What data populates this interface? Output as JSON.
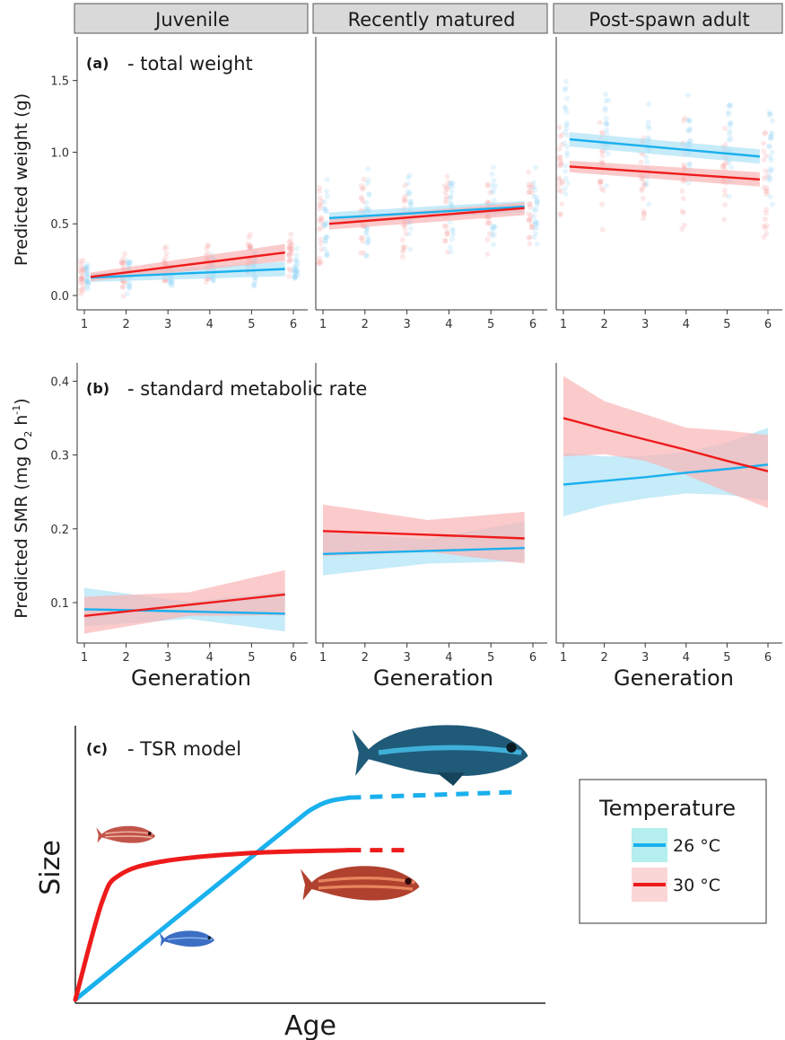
{
  "colors": {
    "cold": "#1ab0ee",
    "cold_fill": "#aee3f7",
    "warm": "#ee1b1b",
    "warm_fill": "#f9b5b5",
    "cold_point": "#8fd3f4",
    "warm_point": "#f59a9a",
    "strip_fill": "#d9d9d9",
    "axis": "#333333"
  },
  "facets": [
    "Juvenile",
    "Recently matured",
    "Post-spawn adult"
  ],
  "panel_a": {
    "tag": "(a)",
    "title": "- total weight",
    "ylabel": "Predicted weight (g)"
  },
  "panel_b": {
    "tag": "(b)",
    "title": "- standard metabolic rate",
    "ylabel_main": "Predicted SMR (mg O",
    "ylabel_sub1": "2",
    "ylabel_mid": " h",
    "ylabel_sup": "-1",
    "ylabel_end": ")",
    "xlabel": "Generation"
  },
  "panel_c": {
    "tag": "(c)",
    "title": "- TSR model",
    "xlabel": "Age",
    "ylabel": "Size"
  },
  "legend": {
    "title": "Temperature",
    "entries": [
      {
        "label": "26 °C",
        "color_key": "cold"
      },
      {
        "label": "30 °C",
        "color_key": "warm"
      }
    ]
  },
  "icons": [
    "fish-icon"
  ],
  "chart_data": [
    {
      "type": "line",
      "panel": "a",
      "x_ticks": [
        1,
        2,
        3,
        4,
        5,
        6
      ],
      "xlim": [
        0.9,
        6.2
      ],
      "ylim": [
        -0.05,
        1.78
      ],
      "y_ticks": [
        0.0,
        0.5,
        1.0,
        1.5
      ],
      "y_tick_labels": [
        "0.0",
        "0.5",
        "1.0",
        "1.5"
      ],
      "facets": [
        {
          "name": "Juvenile",
          "series": [
            {
              "name": "26 °C",
              "x": [
                1.15,
                5.8
              ],
              "fit": [
                0.125,
                0.185
              ],
              "lower": [
                0.095,
                0.135
              ],
              "upper": [
                0.155,
                0.235
              ],
              "point_center": [
                0.12,
                0.14,
                0.15,
                0.16,
                0.17,
                0.19
              ],
              "point_spread": [
                0.12,
                0.16,
                0.15,
                0.14,
                0.15,
                0.16
              ]
            },
            {
              "name": "30 °C",
              "x": [
                1.15,
                5.8
              ],
              "fit": [
                0.13,
                0.3
              ],
              "lower": [
                0.1,
                0.24
              ],
              "upper": [
                0.16,
                0.36
              ],
              "point_center": [
                0.13,
                0.16,
                0.19,
                0.22,
                0.26,
                0.3
              ],
              "point_spread": [
                0.14,
                0.18,
                0.16,
                0.17,
                0.22,
                0.2
              ]
            }
          ]
        },
        {
          "name": "Recently matured",
          "series": [
            {
              "name": "26 °C",
              "x": [
                1.15,
                5.8
              ],
              "fit": [
                0.54,
                0.62
              ],
              "lower": [
                0.5,
                0.58
              ],
              "upper": [
                0.58,
                0.66
              ],
              "point_center": [
                0.54,
                0.56,
                0.57,
                0.59,
                0.6,
                0.62
              ],
              "point_spread": [
                0.35,
                0.35,
                0.35,
                0.35,
                0.35,
                0.35
              ]
            },
            {
              "name": "30 °C",
              "x": [
                1.15,
                5.8
              ],
              "fit": [
                0.5,
                0.61
              ],
              "lower": [
                0.46,
                0.56
              ],
              "upper": [
                0.54,
                0.65
              ],
              "point_center": [
                0.51,
                0.53,
                0.55,
                0.57,
                0.59,
                0.61
              ],
              "point_spread": [
                0.35,
                0.35,
                0.35,
                0.35,
                0.35,
                0.35
              ]
            }
          ]
        },
        {
          "name": "Post-spawn adult",
          "series": [
            {
              "name": "26 °C",
              "x": [
                1.15,
                5.8
              ],
              "fit": [
                1.09,
                0.97
              ],
              "lower": [
                1.04,
                0.92
              ],
              "upper": [
                1.14,
                1.02
              ],
              "point_center": [
                1.09,
                1.07,
                1.04,
                1.02,
                1.0,
                0.98
              ],
              "point_spread": [
                0.45,
                0.45,
                0.45,
                0.45,
                0.45,
                0.45
              ]
            },
            {
              "name": "30 °C",
              "x": [
                1.15,
                5.8
              ],
              "fit": [
                0.9,
                0.81
              ],
              "lower": [
                0.86,
                0.76
              ],
              "upper": [
                0.94,
                0.86
              ],
              "point_center": [
                0.9,
                0.88,
                0.86,
                0.85,
                0.83,
                0.81
              ],
              "point_spread": [
                0.45,
                0.45,
                0.45,
                0.45,
                0.45,
                0.45
              ]
            }
          ]
        }
      ]
    },
    {
      "type": "line",
      "panel": "b",
      "x_ticks": [
        1,
        2,
        3,
        4,
        5,
        6
      ],
      "xlim": [
        0.9,
        6.2
      ],
      "ylim": [
        0.055,
        0.42
      ],
      "y_ticks": [
        0.1,
        0.2,
        0.3,
        0.4
      ],
      "y_tick_labels": [
        "0.1",
        "0.2",
        "0.3",
        "0.4"
      ],
      "facets": [
        {
          "name": "Juvenile",
          "series": [
            {
              "name": "26 °C",
              "x": [
                1,
                3.5,
                5.8
              ],
              "fit": [
                0.091,
                0.088,
                0.085
              ],
              "lower": [
                0.068,
                0.078,
                0.061
              ],
              "upper": [
                0.12,
                0.101,
                0.115
              ]
            },
            {
              "name": "30 °C",
              "x": [
                1,
                3.5,
                5.8
              ],
              "fit": [
                0.082,
                0.097,
                0.111
              ],
              "lower": [
                0.058,
                0.082,
                0.083
              ],
              "upper": [
                0.108,
                0.114,
                0.144
              ]
            }
          ]
        },
        {
          "name": "Recently matured",
          "series": [
            {
              "name": "26 °C",
              "x": [
                1,
                3.5,
                5.8
              ],
              "fit": [
                0.166,
                0.17,
                0.174
              ],
              "lower": [
                0.137,
                0.153,
                0.156
              ],
              "upper": [
                0.196,
                0.186,
                0.21
              ]
            },
            {
              "name": "30 °C",
              "x": [
                1,
                3.5,
                5.8
              ],
              "fit": [
                0.197,
                0.192,
                0.187
              ],
              "lower": [
                0.163,
                0.169,
                0.153
              ],
              "upper": [
                0.233,
                0.212,
                0.223
              ]
            }
          ]
        },
        {
          "name": "Post-spawn adult",
          "series": [
            {
              "name": "26 °C",
              "x": [
                1,
                2,
                3,
                4,
                5,
                6
              ],
              "fit": [
                0.26,
                0.265,
                0.27,
                0.276,
                0.281,
                0.287
              ],
              "lower": [
                0.217,
                0.232,
                0.241,
                0.248,
                0.246,
                0.238
              ],
              "upper": [
                0.303,
                0.298,
                0.299,
                0.304,
                0.317,
                0.337
              ]
            },
            {
              "name": "30 °C",
              "x": [
                1,
                2,
                3,
                4,
                5,
                6
              ],
              "fit": [
                0.35,
                0.335,
                0.321,
                0.307,
                0.292,
                0.278
              ],
              "lower": [
                0.298,
                0.301,
                0.292,
                0.273,
                0.25,
                0.228
              ],
              "upper": [
                0.407,
                0.373,
                0.355,
                0.337,
                0.333,
                0.327
              ]
            }
          ]
        }
      ]
    },
    {
      "type": "line",
      "panel": "c",
      "series": [
        {
          "name": "26 °C",
          "x": [
            0,
            0.45,
            0.55,
            0.62,
            1.0
          ],
          "y": [
            0,
            0.58,
            0.7,
            0.73,
            0.75
          ],
          "dashed_from": 0.62
        },
        {
          "name": "30 °C",
          "x": [
            0,
            0.06,
            0.1,
            0.2,
            0.4,
            0.62,
            0.75
          ],
          "y": [
            0,
            0.35,
            0.45,
            0.5,
            0.53,
            0.54,
            0.54
          ],
          "dashed_from": 0.62
        }
      ]
    }
  ]
}
